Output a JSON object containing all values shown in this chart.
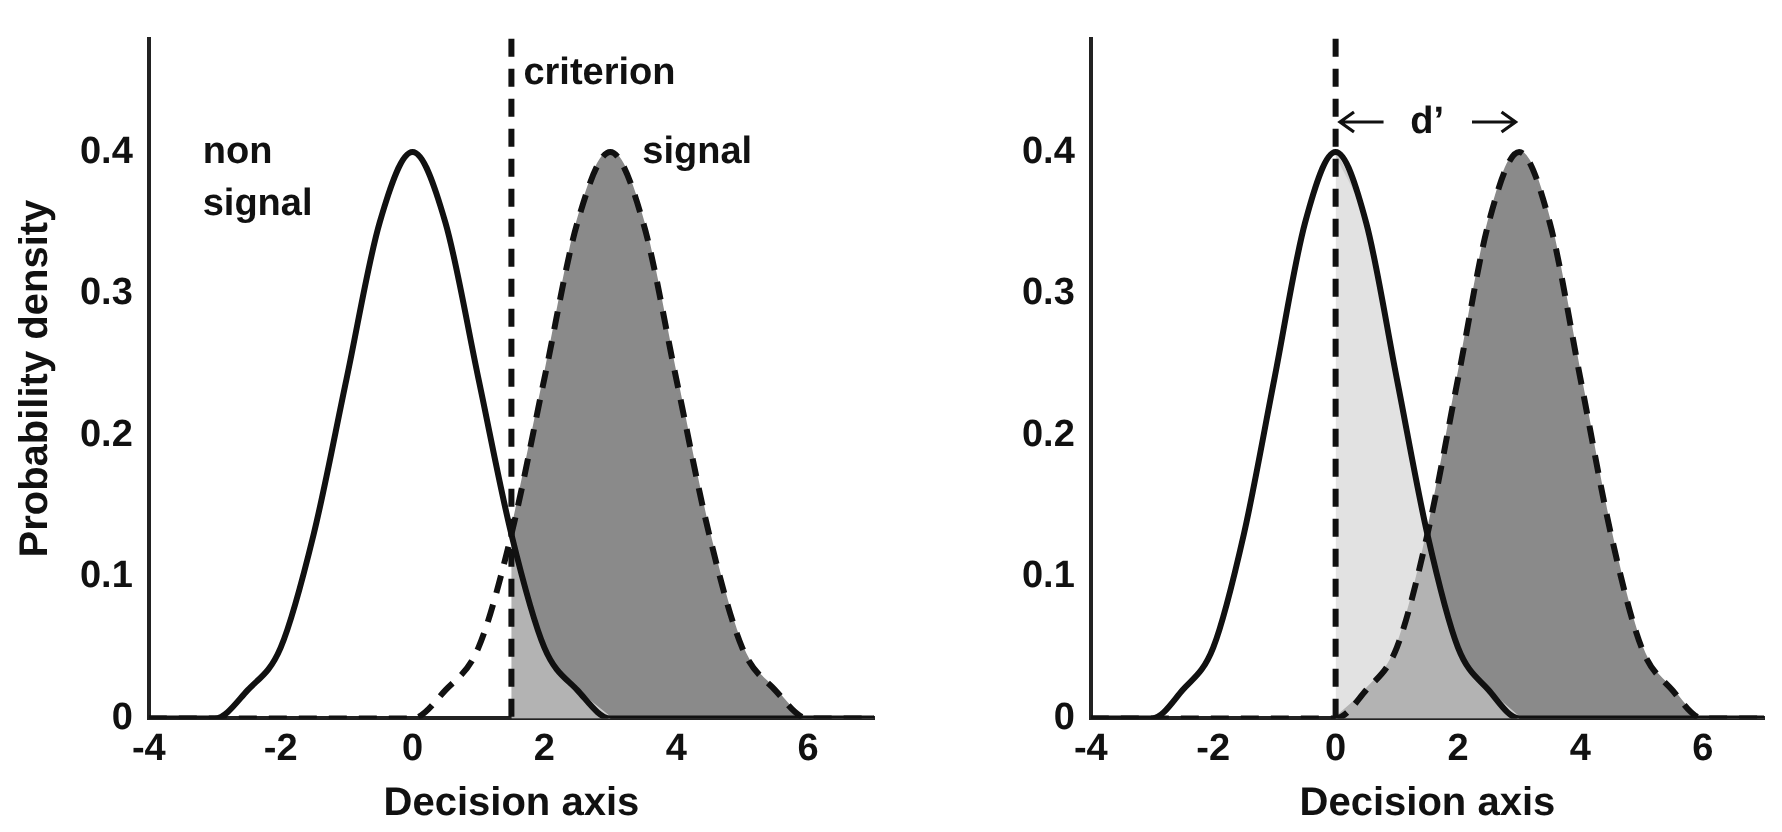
{
  "chart_data": [
    {
      "type": "line",
      "xlabel": "Decision axis",
      "ylabel": "Probability density",
      "x": [
        -4,
        -3.5,
        -3,
        -2.5,
        -2,
        -1.5,
        -1,
        -0.5,
        0,
        0.5,
        1,
        1.5,
        2,
        2.5,
        3,
        3.5,
        4,
        4.5,
        5,
        5.5,
        6,
        6.5,
        7
      ],
      "series": [
        {
          "type": "area",
          "color": "#8a8a8a",
          "x": [
            1.5,
            2,
            2.5,
            3,
            3.5,
            4,
            4.5,
            5,
            5.5,
            6,
            6.5,
            7
          ],
          "values": [
            0.13,
            0.24,
            0.35,
            0.4,
            0.35,
            0.24,
            0.13,
            0.05,
            0.02,
            0,
            0,
            0
          ]
        },
        {
          "type": "area",
          "color": "#cfcfcf",
          "x": [
            1.5,
            2,
            2.5,
            3
          ],
          "values": [
            0.13,
            0.05,
            0.02,
            0
          ]
        },
        {
          "type": "line",
          "name": "non signal",
          "color": "#111111",
          "line_style": "solid",
          "values": [
            0,
            0,
            0,
            0.02,
            0.05,
            0.13,
            0.24,
            0.35,
            0.4,
            0.35,
            0.24,
            0.13,
            0.05,
            0.02,
            0,
            0,
            0,
            0,
            0,
            0,
            0,
            0,
            0
          ]
        },
        {
          "type": "line",
          "name": "signal",
          "color": "#111111",
          "line_style": "dashed",
          "values": [
            0,
            0,
            0,
            0,
            0,
            0,
            0,
            0,
            0,
            0.02,
            0.05,
            0.13,
            0.24,
            0.35,
            0.4,
            0.35,
            0.24,
            0.13,
            0.05,
            0.02,
            0,
            0,
            0
          ]
        }
      ],
      "ref_lines": [
        {
          "axis": "x",
          "value": 1.5,
          "label": "criterion",
          "line_style": "dashed"
        }
      ],
      "xlim": [
        -4,
        7
      ],
      "xticks": [
        -4,
        -2,
        0,
        2,
        4,
        6
      ],
      "ylim": [
        0,
        0.48
      ],
      "yticks": [
        0,
        0.1,
        0.2,
        0.3,
        0.4
      ],
      "grid": false,
      "legend": false
    },
    {
      "type": "line",
      "xlabel": "Decision axis",
      "x": [
        -4,
        -3.5,
        -3,
        -2.5,
        -2,
        -1.5,
        -1,
        -0.5,
        0,
        0.5,
        1,
        1.5,
        2,
        2.5,
        3,
        3.5,
        4,
        4.5,
        5,
        5.5,
        6,
        6.5,
        7
      ],
      "series": [
        {
          "type": "area",
          "color": "#8a8a8a",
          "x": [
            0,
            0.5,
            1,
            1.5,
            2,
            2.5,
            3,
            3.5,
            4,
            4.5,
            5,
            5.5,
            6,
            6.5,
            7
          ],
          "values": [
            0,
            0.02,
            0.05,
            0.13,
            0.24,
            0.35,
            0.4,
            0.35,
            0.24,
            0.13,
            0.05,
            0.02,
            0,
            0,
            0
          ]
        },
        {
          "type": "area",
          "color": "#cfcfcf",
          "x": [
            0,
            0.5,
            1,
            1.5,
            2,
            2.5,
            3
          ],
          "values": [
            0.4,
            0.35,
            0.24,
            0.13,
            0.05,
            0.02,
            0
          ]
        },
        {
          "type": "line",
          "color": "#111111",
          "line_style": "solid",
          "values": [
            0,
            0,
            0,
            0.02,
            0.05,
            0.13,
            0.24,
            0.35,
            0.4,
            0.35,
            0.24,
            0.13,
            0.05,
            0.02,
            0,
            0,
            0,
            0,
            0,
            0,
            0,
            0,
            0
          ]
        },
        {
          "type": "line",
          "color": "#111111",
          "line_style": "dashed",
          "values": [
            0,
            0,
            0,
            0,
            0,
            0,
            0,
            0,
            0,
            0.02,
            0.05,
            0.13,
            0.24,
            0.35,
            0.4,
            0.35,
            0.24,
            0.13,
            0.05,
            0.02,
            0,
            0,
            0
          ]
        }
      ],
      "ref_lines": [
        {
          "axis": "x",
          "value": 0,
          "line_style": "dashed"
        }
      ],
      "annotations": [
        "d’"
      ],
      "xlim": [
        -4,
        7
      ],
      "xticks": [
        -4,
        -2,
        0,
        2,
        4,
        6
      ],
      "ylim": [
        0,
        0.48
      ],
      "yticks": [
        0,
        0.1,
        0.2,
        0.3,
        0.4
      ],
      "grid": false,
      "legend": false
    }
  ]
}
